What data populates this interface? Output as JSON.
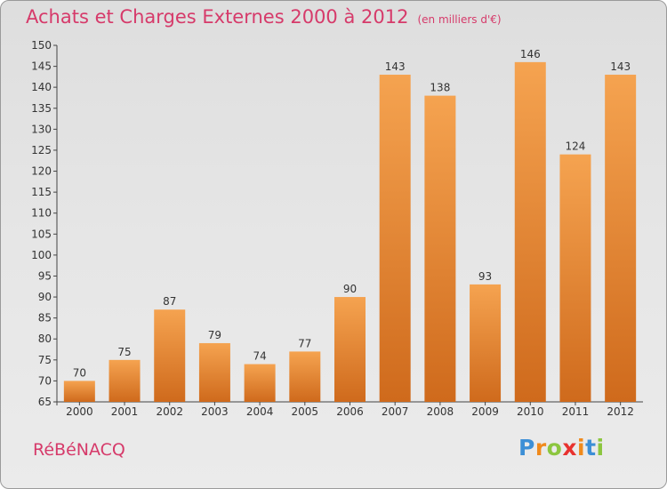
{
  "title": "Achats et Charges Externes 2000 à 2012",
  "unit": "(en milliers d'€)",
  "town": "RéBéNACQ",
  "brand": {
    "letters": [
      "P",
      "r",
      "o",
      "x",
      "i",
      "t",
      "i"
    ],
    "colors": [
      "#3d8fd6",
      "#f08a1c",
      "#8cc63f",
      "#e8322f",
      "#f08a1c",
      "#3d8fd6",
      "#8cc63f"
    ]
  },
  "colors": {
    "bar": "#f0a050",
    "text": "#d63a6a"
  },
  "chart_data": {
    "type": "bar",
    "categories": [
      "2000",
      "2001",
      "2002",
      "2003",
      "2004",
      "2005",
      "2006",
      "2007",
      "2008",
      "2009",
      "2010",
      "2011",
      "2012"
    ],
    "values": [
      70,
      75,
      87,
      79,
      74,
      77,
      90,
      143,
      138,
      93,
      146,
      124,
      143
    ],
    "title": "Achats et Charges Externes 2000 à 2012",
    "subtitle": "(en milliers d'€)",
    "xlabel": "",
    "ylabel": "",
    "ylim": [
      65,
      150
    ],
    "ytick_step": 5,
    "grid": false,
    "legend": "none"
  }
}
